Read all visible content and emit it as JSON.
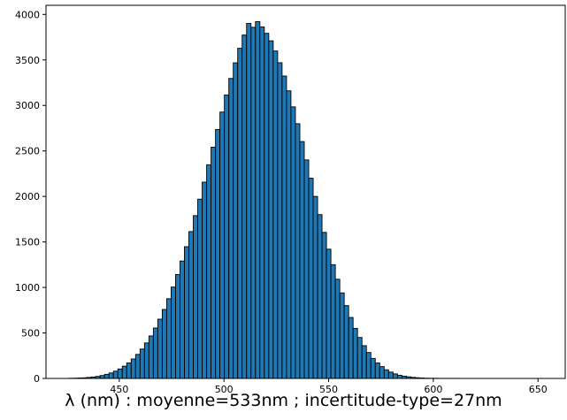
{
  "colors": {
    "bar_fill": "#1f77b4",
    "bar_edge": "#000000",
    "axis": "#000000",
    "background": "#ffffff"
  },
  "chart_data": {
    "type": "bar",
    "title": "",
    "xlabel": "λ (nm) : moyenne=533nm ; incertitude-type=27nm",
    "ylabel": "",
    "xlim": [
      415,
      663
    ],
    "ylim": [
      0,
      4100
    ],
    "grid": false,
    "legend": "none",
    "x_ticks": [
      {
        "value": 450,
        "label": "450"
      },
      {
        "value": 500,
        "label": "500"
      },
      {
        "value": 550,
        "label": "550"
      },
      {
        "value": 600,
        "label": "600"
      },
      {
        "value": 650,
        "label": "650"
      }
    ],
    "y_ticks": [
      {
        "value": 0,
        "label": "0"
      },
      {
        "value": 500,
        "label": "500"
      },
      {
        "value": 1000,
        "label": "1000"
      },
      {
        "value": 1500,
        "label": "1500"
      },
      {
        "value": 2000,
        "label": "2000"
      },
      {
        "value": 2500,
        "label": "2500"
      },
      {
        "value": 3000,
        "label": "3000"
      },
      {
        "value": 3500,
        "label": "3500"
      },
      {
        "value": 4000,
        "label": "4000"
      }
    ],
    "bin_start": 426.0,
    "bin_width": 2.12,
    "values": [
      2,
      3,
      5,
      7,
      11,
      16,
      22,
      32,
      45,
      60,
      80,
      104,
      135,
      171,
      214,
      264,
      323,
      390,
      467,
      554,
      651,
      758,
      876,
      1004,
      1142,
      1290,
      1448,
      1614,
      1789,
      1970,
      2157,
      2348,
      2541,
      2735,
      2927,
      3115,
      3296,
      3468,
      3628,
      3773,
      3901,
      3858,
      3921,
      3862,
      3792,
      3710,
      3598,
      3469,
      3323,
      3160,
      2984,
      2799,
      2603,
      2401,
      2200,
      2000,
      1800,
      1605,
      1420,
      1250,
      1090,
      940,
      800,
      670,
      550,
      450,
      360,
      285,
      220,
      170,
      130,
      95,
      70,
      50,
      35,
      25,
      18,
      12,
      8,
      5,
      3,
      2,
      2,
      1,
      1,
      1,
      1,
      1
    ]
  }
}
